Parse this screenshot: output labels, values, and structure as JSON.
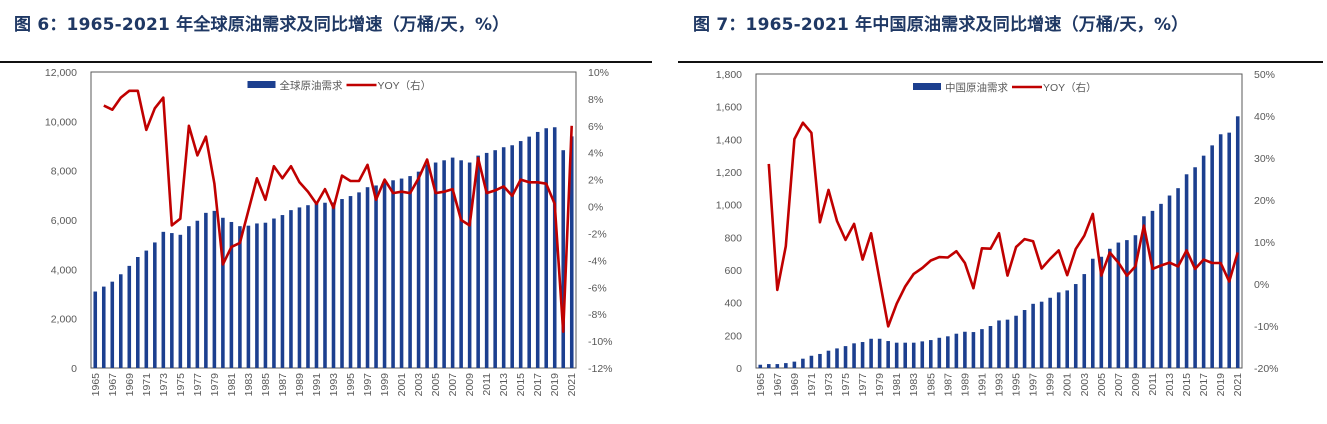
{
  "colors": {
    "bar": "#1c3f8f",
    "line": "#c00000",
    "title": "#1f3864"
  },
  "chart_data": [
    {
      "type": "bar+line",
      "title": "图 6：1965-2021 年全球原油需求及同比增速（万桶/天，%）",
      "x": [
        1965,
        1966,
        1967,
        1968,
        1969,
        1970,
        1971,
        1972,
        1973,
        1974,
        1975,
        1976,
        1977,
        1978,
        1979,
        1980,
        1981,
        1982,
        1983,
        1984,
        1985,
        1986,
        1987,
        1988,
        1989,
        1990,
        1991,
        1992,
        1993,
        1994,
        1995,
        1996,
        1997,
        1998,
        1999,
        2000,
        2001,
        2002,
        2003,
        2004,
        2005,
        2006,
        2007,
        2008,
        2009,
        2010,
        2011,
        2012,
        2013,
        2014,
        2015,
        2016,
        2017,
        2018,
        2019,
        2020,
        2021
      ],
      "xtick_labels": [
        "1965",
        "1967",
        "1969",
        "1971",
        "1973",
        "1975",
        "1977",
        "1979",
        "1981",
        "1983",
        "1985",
        "1987",
        "1989",
        "1991",
        "1993",
        "1995",
        "1997",
        "1999",
        "2001",
        "2003",
        "2005",
        "2007",
        "2009",
        "2011",
        "2013",
        "2015",
        "2017",
        "2019",
        "2021"
      ],
      "y_left": {
        "range": [
          0,
          12000
        ],
        "ticks": [
          "0",
          "2,000",
          "4,000",
          "6,000",
          "8,000",
          "10,000",
          "12,000"
        ]
      },
      "y_right": {
        "range": [
          -12,
          10
        ],
        "ticks": [
          "-12%",
          "-10%",
          "-8%",
          "-6%",
          "-4%",
          "-2%",
          "0%",
          "2%",
          "4%",
          "6%",
          "8%",
          "10%"
        ]
      },
      "legend": {
        "placement": "top-center"
      },
      "series": [
        {
          "name": "全球原油需求",
          "type": "bar",
          "axis": "left",
          "values": [
            3100,
            3300,
            3500,
            3800,
            4140,
            4500,
            4760,
            5090,
            5520,
            5470,
            5400,
            5750,
            5970,
            6290,
            6370,
            6090,
            5920,
            5750,
            5770,
            5860,
            5890,
            6060,
            6200,
            6400,
            6510,
            6600,
            6700,
            6700,
            6710,
            6850,
            6970,
            7120,
            7330,
            7400,
            7550,
            7610,
            7680,
            7780,
            7960,
            8260,
            8330,
            8420,
            8530,
            8420,
            8330,
            8610,
            8720,
            8830,
            8950,
            9030,
            9200,
            9380,
            9570,
            9720,
            9760,
            8830,
            9390
          ]
        },
        {
          "name": "YOY（右）",
          "type": "line",
          "axis": "right",
          "values": [
            null,
            7.5,
            7.2,
            8.1,
            8.6,
            8.6,
            5.7,
            7.3,
            8.1,
            -1.4,
            -0.9,
            6.0,
            3.8,
            5.2,
            1.7,
            -4.3,
            -3.0,
            -2.7,
            -0.3,
            2.1,
            0.5,
            3.0,
            2.1,
            3.0,
            1.8,
            1.1,
            0.2,
            1.3,
            -0.1,
            2.3,
            1.9,
            1.9,
            3.1,
            0.5,
            2.0,
            1.0,
            1.1,
            1.0,
            2.1,
            3.5,
            1.0,
            1.1,
            1.3,
            -1.0,
            -1.4,
            3.6,
            1.0,
            1.2,
            1.5,
            0.8,
            2.0,
            1.8,
            1.8,
            1.7,
            0.2,
            -9.3,
            6.0
          ]
        }
      ]
    },
    {
      "type": "bar+line",
      "title": "图 7：1965-2021 年中国原油需求及同比增速（万桶/天，%）",
      "x": [
        1965,
        1966,
        1967,
        1968,
        1969,
        1970,
        1971,
        1972,
        1973,
        1974,
        1975,
        1976,
        1977,
        1978,
        1979,
        1980,
        1981,
        1982,
        1983,
        1984,
        1985,
        1986,
        1987,
        1988,
        1989,
        1990,
        1991,
        1992,
        1993,
        1994,
        1995,
        1996,
        1997,
        1998,
        1999,
        2000,
        2001,
        2002,
        2003,
        2004,
        2005,
        2006,
        2007,
        2008,
        2009,
        2010,
        2011,
        2012,
        2013,
        2014,
        2015,
        2016,
        2017,
        2018,
        2019,
        2020,
        2021
      ],
      "xtick_labels": [
        "1965",
        "1967",
        "1969",
        "1971",
        "1973",
        "1975",
        "1977",
        "1979",
        "1981",
        "1983",
        "1985",
        "1987",
        "1989",
        "1991",
        "1993",
        "1995",
        "1997",
        "1999",
        "2001",
        "2003",
        "2005",
        "2007",
        "2009",
        "2011",
        "2013",
        "2015",
        "2017",
        "2019",
        "2021"
      ],
      "y_left": {
        "range": [
          0,
          1800
        ],
        "ticks": [
          "0",
          "200",
          "400",
          "600",
          "800",
          "1,000",
          "1,200",
          "1,400",
          "1,600",
          "1,800"
        ]
      },
      "y_right": {
        "range": [
          -20,
          50
        ],
        "ticks": [
          "-20%",
          "-10%",
          "0%",
          "10%",
          "20%",
          "30%",
          "40%",
          "50%"
        ]
      },
      "legend": {
        "placement": "top-center"
      },
      "series": [
        {
          "name": "中国原油需求",
          "type": "bar",
          "axis": "left",
          "values": [
            20,
            24,
            24,
            30,
            39,
            57,
            75,
            86,
            106,
            120,
            134,
            151,
            159,
            179,
            179,
            165,
            155,
            155,
            155,
            163,
            171,
            185,
            194,
            210,
            222,
            220,
            238,
            257,
            291,
            296,
            320,
            355,
            393,
            406,
            430,
            463,
            475,
            514,
            575,
            669,
            681,
            730,
            768,
            783,
            813,
            929,
            962,
            1005,
            1056,
            1101,
            1186,
            1229,
            1300,
            1363,
            1431,
            1441,
            1541
          ]
        },
        {
          "name": "YOY（右）",
          "type": "line",
          "axis": "right",
          "values": [
            null,
            28.6,
            -1.4,
            9.0,
            34.5,
            38.4,
            36.0,
            14.7,
            22.4,
            15.0,
            10.5,
            14.3,
            5.8,
            12.1,
            1.0,
            -10.1,
            -4.7,
            -0.6,
            2.4,
            3.8,
            5.6,
            6.4,
            6.3,
            7.8,
            5.0,
            -1.0,
            8.5,
            8.4,
            12.1,
            2.0,
            8.8,
            10.7,
            10.2,
            3.7,
            6.0,
            8.0,
            2.1,
            8.3,
            11.5,
            16.7,
            2.0,
            7.5,
            5.1,
            2.0,
            4.2,
            13.9,
            3.6,
            4.4,
            5.1,
            4.2,
            8.0,
            3.6,
            5.8,
            5.0,
            5.0,
            0.6,
            7.5
          ]
        }
      ]
    }
  ]
}
